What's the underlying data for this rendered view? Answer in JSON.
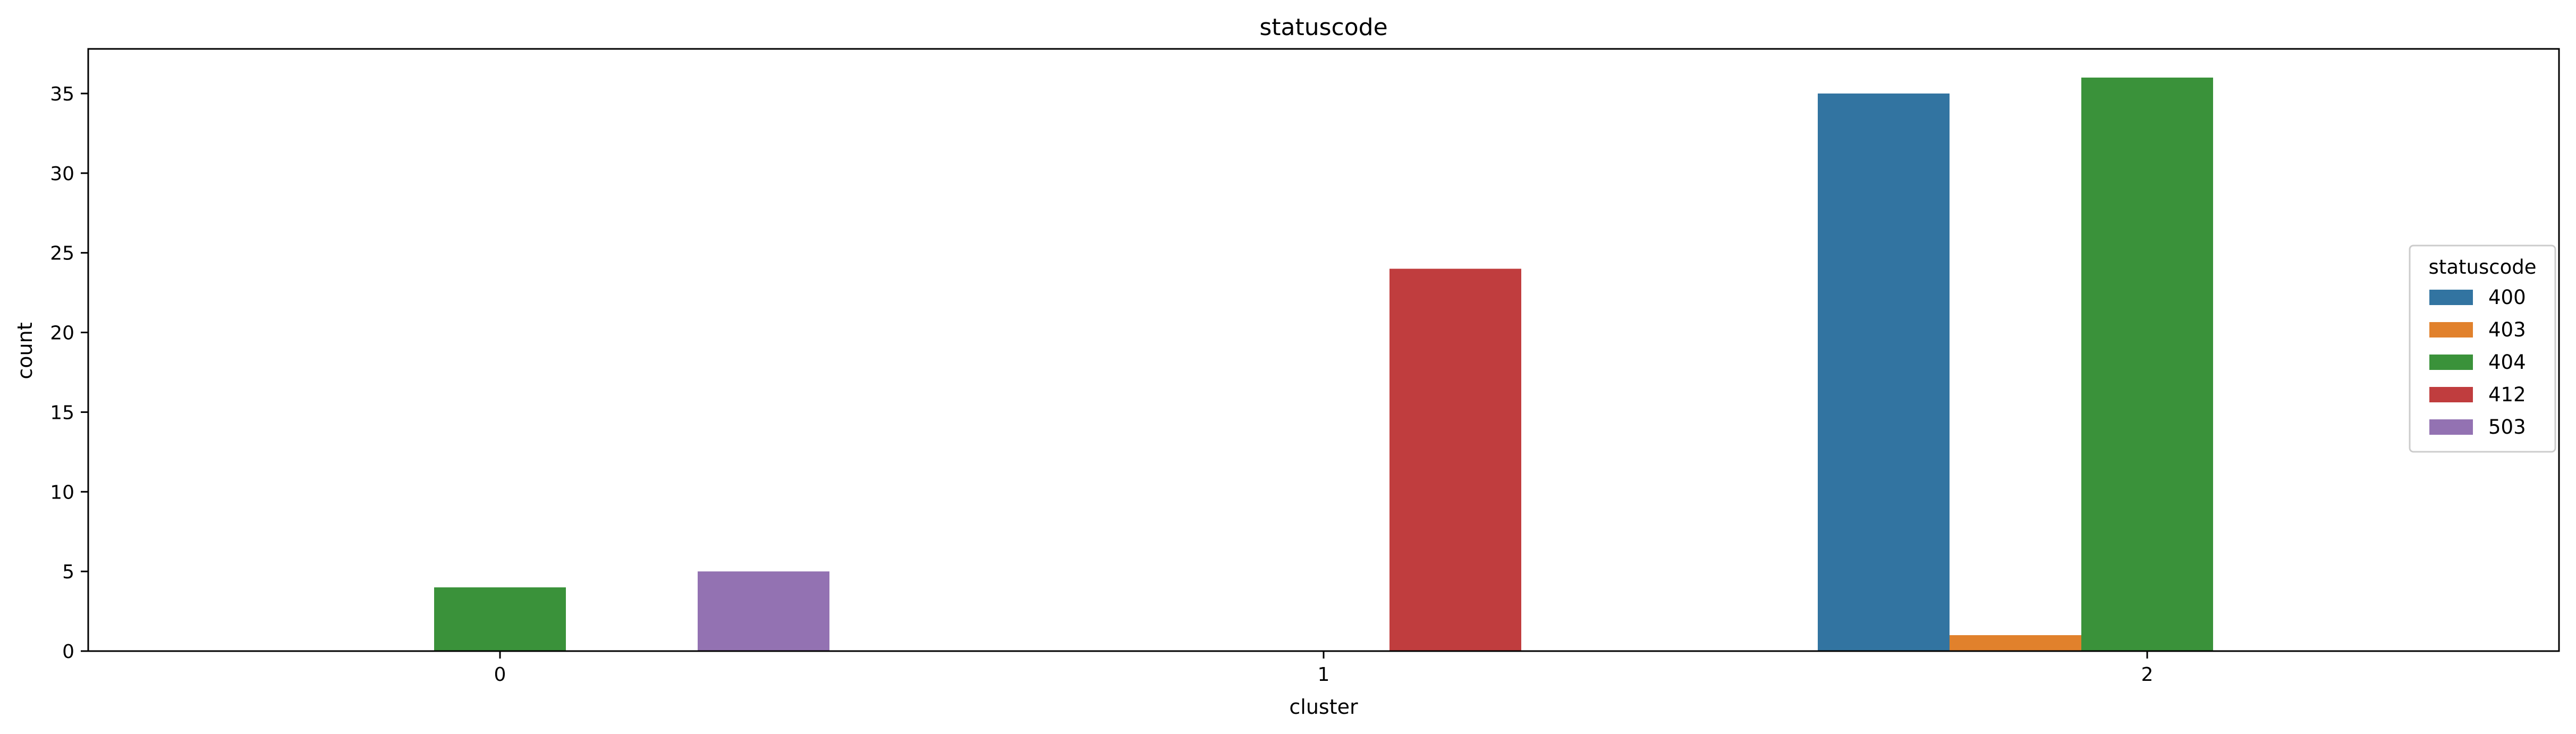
{
  "chart_data": {
    "type": "bar",
    "title": "statuscode",
    "xlabel": "cluster",
    "ylabel": "count",
    "categories": [
      "0",
      "1",
      "2"
    ],
    "ylim": [
      0,
      37.8
    ],
    "yticks": [
      0,
      5,
      10,
      15,
      20,
      25,
      30,
      35
    ],
    "grid": false,
    "legend": {
      "title": "statuscode",
      "placement": "center-right"
    },
    "series": [
      {
        "name": "400",
        "color": "#3274a1",
        "values": [
          0,
          0,
          35
        ]
      },
      {
        "name": "403",
        "color": "#e1812c",
        "values": [
          0,
          0,
          1
        ]
      },
      {
        "name": "404",
        "color": "#3a923a",
        "values": [
          4,
          0,
          36
        ]
      },
      {
        "name": "412",
        "color": "#c03d3e",
        "values": [
          0,
          24,
          0
        ]
      },
      {
        "name": "503",
        "color": "#9372b2",
        "values": [
          5,
          0,
          0
        ]
      }
    ]
  }
}
